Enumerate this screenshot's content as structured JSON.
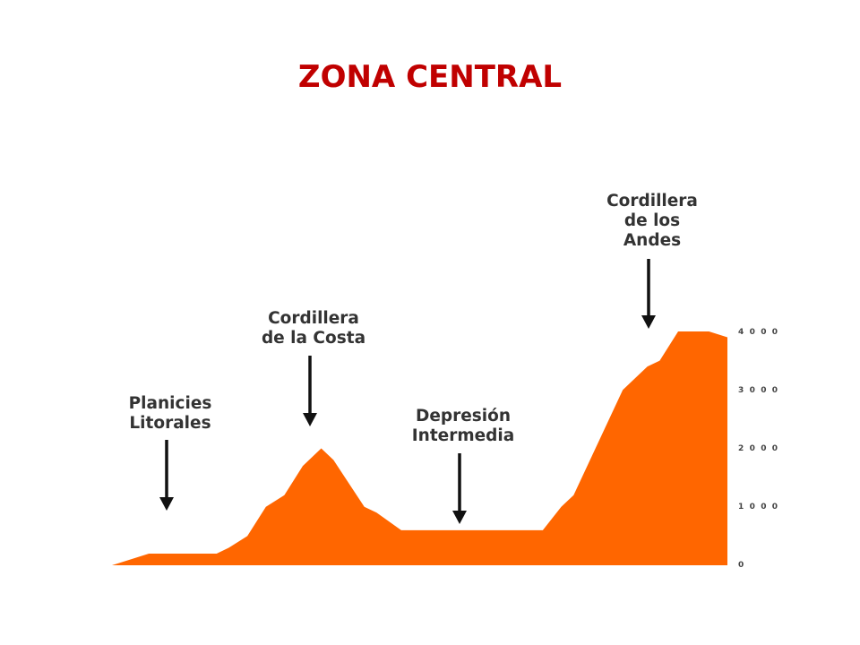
{
  "title": "ZONA CENTRAL",
  "colors": {
    "title": "#c00000",
    "terrain": "#ff6600",
    "arrow": "#111111",
    "label": "#333333"
  },
  "chart_data": {
    "type": "area",
    "y_ticks": [
      "4 0 0 0",
      "3 0 0 0",
      "2 0 0 0",
      "1 0 0 0",
      "0"
    ],
    "ylim": [
      0,
      4000
    ],
    "profile_units": "altitude",
    "profile": [
      [
        0,
        0
      ],
      [
        6,
        200
      ],
      [
        17,
        200
      ],
      [
        19,
        300
      ],
      [
        22,
        500
      ],
      [
        25,
        1000
      ],
      [
        28,
        1200
      ],
      [
        31,
        1700
      ],
      [
        34,
        2000
      ],
      [
        36,
        1800
      ],
      [
        41,
        1000
      ],
      [
        43,
        900
      ],
      [
        47,
        600
      ],
      [
        70,
        600
      ],
      [
        73,
        1000
      ],
      [
        75,
        1200
      ],
      [
        83,
        3000
      ],
      [
        87,
        3400
      ],
      [
        89,
        3500
      ],
      [
        92,
        4000
      ],
      [
        97,
        4000
      ],
      [
        100,
        3900
      ]
    ],
    "annotations": [
      {
        "lines": [
          "Planicies",
          "Litorales"
        ]
      },
      {
        "lines": [
          "Cordillera",
          "de la Costa"
        ]
      },
      {
        "lines": [
          "Depresión",
          "Intermedia"
        ]
      },
      {
        "lines": [
          "Cordillera",
          "de los",
          "Andes"
        ]
      }
    ]
  }
}
